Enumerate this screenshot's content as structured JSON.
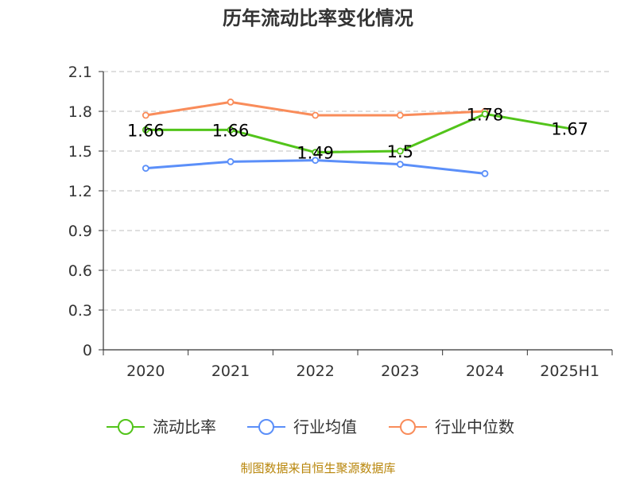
{
  "source_text": "制图数据来自恒生聚源数据库",
  "colors": {
    "current_ratio": "#52c41a",
    "industry_mean": "#5b8ff9",
    "industry_median": "#f98c5a",
    "axis": "#333333",
    "grid": "#cccccc",
    "source": "#b8860b",
    "title": "#333333"
  },
  "chart_data": {
    "type": "line",
    "title": "历年流动比率变化情况",
    "xlabel": "",
    "ylabel": "",
    "categories": [
      "2020",
      "2021",
      "2022",
      "2023",
      "2024",
      "2025H1"
    ],
    "ylim": [
      0,
      2.1
    ],
    "yticks": [
      0,
      0.3,
      0.6,
      0.9,
      1.2,
      1.5,
      1.8,
      2.1
    ],
    "ytick_labels": [
      "0",
      "0.3",
      "0.6",
      "0.9",
      "1.2",
      "1.5",
      "1.8",
      "2.1"
    ],
    "grid": true,
    "legend_position": "bottom",
    "series": [
      {
        "name": "流动比率",
        "color_key": "current_ratio",
        "values": [
          1.66,
          1.66,
          1.49,
          1.5,
          1.78,
          1.67
        ],
        "data_labels": [
          "1.66",
          "1.66",
          "1.49",
          "1.5",
          "1.78",
          "1.67"
        ],
        "markers": [
          true,
          true,
          true,
          true,
          true,
          false
        ]
      },
      {
        "name": "行业均值",
        "color_key": "industry_mean",
        "values": [
          1.37,
          1.42,
          1.43,
          1.4,
          1.33,
          null
        ],
        "markers": [
          true,
          true,
          true,
          true,
          true,
          false
        ]
      },
      {
        "name": "行业中位数",
        "color_key": "industry_median",
        "values": [
          1.77,
          1.87,
          1.77,
          1.77,
          1.8,
          null
        ],
        "markers": [
          true,
          true,
          true,
          true,
          true,
          false
        ]
      }
    ]
  }
}
